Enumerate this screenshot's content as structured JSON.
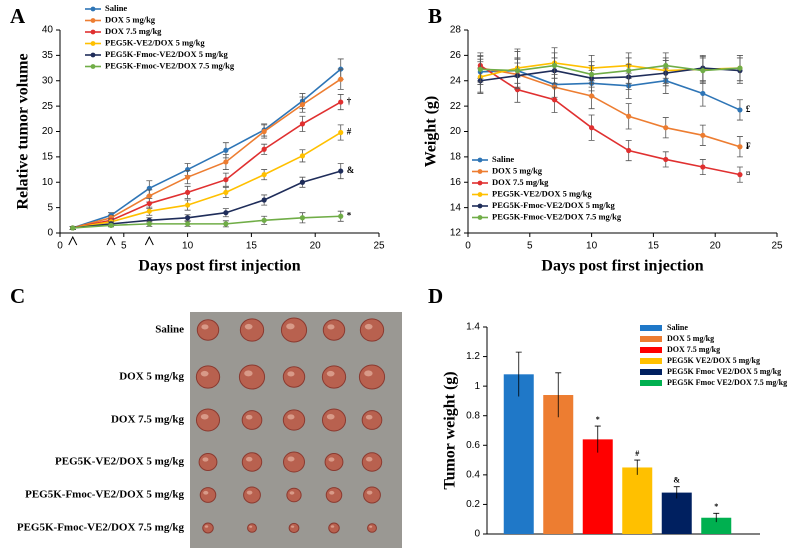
{
  "chart_data": [
    {
      "type": "line",
      "panel_label": "A",
      "ylabel": "Relative tumor volume",
      "xlabel": "Days post first injection",
      "x": [
        1,
        4,
        7,
        10,
        13,
        16,
        19,
        22
      ],
      "xlim": [
        0,
        25
      ],
      "xticks": [
        0,
        5,
        10,
        15,
        20,
        25
      ],
      "ylim": [
        0,
        40
      ],
      "yticks": [
        0,
        5,
        10,
        15,
        20,
        25,
        30,
        35,
        40
      ],
      "injections": [
        1,
        4,
        7
      ],
      "series": [
        {
          "name": "Saline",
          "color": "#2e75b6",
          "values": [
            1,
            3.5,
            8.8,
            12.5,
            16.3,
            20.3,
            26,
            32.3
          ],
          "errors": [
            0.3,
            0.5,
            1.5,
            1.2,
            1.5,
            1.2,
            1.5,
            2
          ]
        },
        {
          "name": "DOX 5 mg/kg",
          "color": "#ed7d31",
          "values": [
            1,
            3,
            7.3,
            11,
            14,
            20,
            25.3,
            30.3
          ],
          "errors": [
            0.3,
            0.5,
            1.2,
            1.3,
            1.5,
            1.3,
            1.5,
            2
          ]
        },
        {
          "name": "DOX 7.5 mg/kg",
          "color": "#e03030",
          "values": [
            1,
            2.5,
            5.8,
            8,
            10.5,
            16.5,
            21.5,
            25.8
          ],
          "errors": [
            0.3,
            0.4,
            1,
            1.2,
            1.3,
            1,
            1.5,
            1.5
          ],
          "end_label": "†"
        },
        {
          "name": "PEG5K-VE2/DOX 5 mg/kg",
          "color": "#ffc000",
          "values": [
            1,
            2.2,
            4.3,
            5.5,
            8,
            11.5,
            15.2,
            19.8
          ],
          "errors": [
            0.3,
            0.4,
            0.8,
            1,
            1,
            1,
            1.2,
            1.5
          ],
          "end_label": "#"
        },
        {
          "name": "PEG5K-Fmoc-VE2/DOX 5 mg/kg",
          "color": "#1f2d5a",
          "values": [
            1,
            1.8,
            2.5,
            3,
            4,
            6.5,
            10,
            12.2
          ],
          "errors": [
            0.3,
            0.4,
            0.5,
            0.6,
            0.8,
            1,
            1,
            1.5
          ],
          "end_label": "&"
        },
        {
          "name": "PEG5K-Fmoc-VE2/DOX 7.5 mg/kg",
          "color": "#70ad47",
          "values": [
            1,
            1.5,
            1.8,
            1.8,
            1.8,
            2.5,
            3,
            3.3
          ],
          "errors": [
            0.3,
            0.3,
            0.5,
            0.5,
            0.6,
            0.8,
            1,
            1
          ],
          "end_label": "*"
        }
      ]
    },
    {
      "type": "line",
      "panel_label": "B",
      "ylabel": "Weight (g)",
      "xlabel": "Days post first injection",
      "x": [
        1,
        4,
        7,
        10,
        13,
        16,
        19,
        22
      ],
      "xlim": [
        0,
        25
      ],
      "xticks": [
        0,
        5,
        10,
        15,
        20,
        25
      ],
      "ylim": [
        12,
        28
      ],
      "yticks": [
        12,
        14,
        16,
        18,
        20,
        22,
        24,
        26,
        28
      ],
      "series": [
        {
          "name": "Saline",
          "color": "#2e75b6",
          "values": [
            24.7,
            24.8,
            23.7,
            23.8,
            23.6,
            24,
            23,
            21.7
          ],
          "errors": [
            1,
            1.5,
            1,
            1,
            1,
            1,
            1,
            0.8
          ],
          "end_label": "£"
        },
        {
          "name": "DOX 5 mg/kg",
          "color": "#ed7d31",
          "values": [
            25,
            24.5,
            23.5,
            22.8,
            21.2,
            20.3,
            19.7,
            18.8
          ],
          "errors": [
            1,
            1.2,
            1,
            1,
            1,
            0.8,
            0.8,
            0.8
          ],
          "end_label": "₣"
        },
        {
          "name": "DOX 7.5 mg/kg",
          "color": "#e03030",
          "values": [
            25.2,
            23.3,
            22.5,
            20.3,
            18.5,
            17.8,
            17.2,
            16.6
          ],
          "errors": [
            1,
            1,
            1,
            1,
            0.8,
            0.6,
            0.6,
            0.6
          ],
          "end_label": "¤"
        },
        {
          "name": "PEG5K-VE2/DOX 5 mg/kg",
          "color": "#ffc000",
          "values": [
            24.3,
            25,
            25.4,
            25,
            25.2,
            24.8,
            24.9,
            25
          ],
          "errors": [
            1.2,
            1.5,
            1.2,
            1,
            1,
            1,
            1,
            1
          ]
        },
        {
          "name": "PEG5K-Fmoc-VE2/DOX 5 mg/kg",
          "color": "#1f2d5a",
          "values": [
            24,
            24.4,
            24.8,
            24.2,
            24.3,
            24.6,
            25,
            24.8
          ],
          "errors": [
            1,
            1,
            1,
            1,
            1,
            1,
            1,
            1
          ]
        },
        {
          "name": "PEG5K-Fmoc-VE2/DOX 7.5 mg/kg",
          "color": "#70ad47",
          "values": [
            24.9,
            24.8,
            25.2,
            24.5,
            24.8,
            25.2,
            24.8,
            25
          ],
          "errors": [
            1,
            1,
            1,
            1,
            1,
            1,
            1,
            1
          ]
        }
      ]
    },
    {
      "type": "bar",
      "panel_label": "D",
      "ylabel": "Tumor weight (g)",
      "ylim": [
        0,
        1.4
      ],
      "yticks": [
        0,
        0.2,
        0.4,
        0.6,
        0.8,
        1,
        1.2,
        1.4
      ],
      "categories": [
        "Saline",
        "DOX 5 mg/kg",
        "DOX 7.5 mg/kg",
        "PEG5K VE2/DOX 5 mg/kg",
        "PEG5K Fmoc VE2/DOX 5 mg/kg",
        "PEG5K Fmoc VE2/DOX 7.5 mg/kg"
      ],
      "values": [
        1.08,
        0.94,
        0.64,
        0.45,
        0.28,
        0.11
      ],
      "errors": [
        0.15,
        0.15,
        0.09,
        0.05,
        0.04,
        0.03
      ],
      "annotations": [
        null,
        null,
        "*",
        "#",
        "&",
        "*"
      ],
      "colors": [
        "#1f78c8",
        "#ed7d31",
        "#ff0000",
        "#ffc000",
        "#002060",
        "#00b050"
      ]
    }
  ],
  "photo": {
    "panel_label": "C",
    "rows": [
      "Saline",
      "DOX 5 mg/kg",
      "DOX 7.5 mg/kg",
      "PEG5K-VE2/DOX 5 mg/kg",
      "PEG5K-Fmoc-VE2/DOX 5 mg/kg",
      "PEG5K-Fmoc-VE2/DOX 7.5 mg/kg"
    ]
  }
}
